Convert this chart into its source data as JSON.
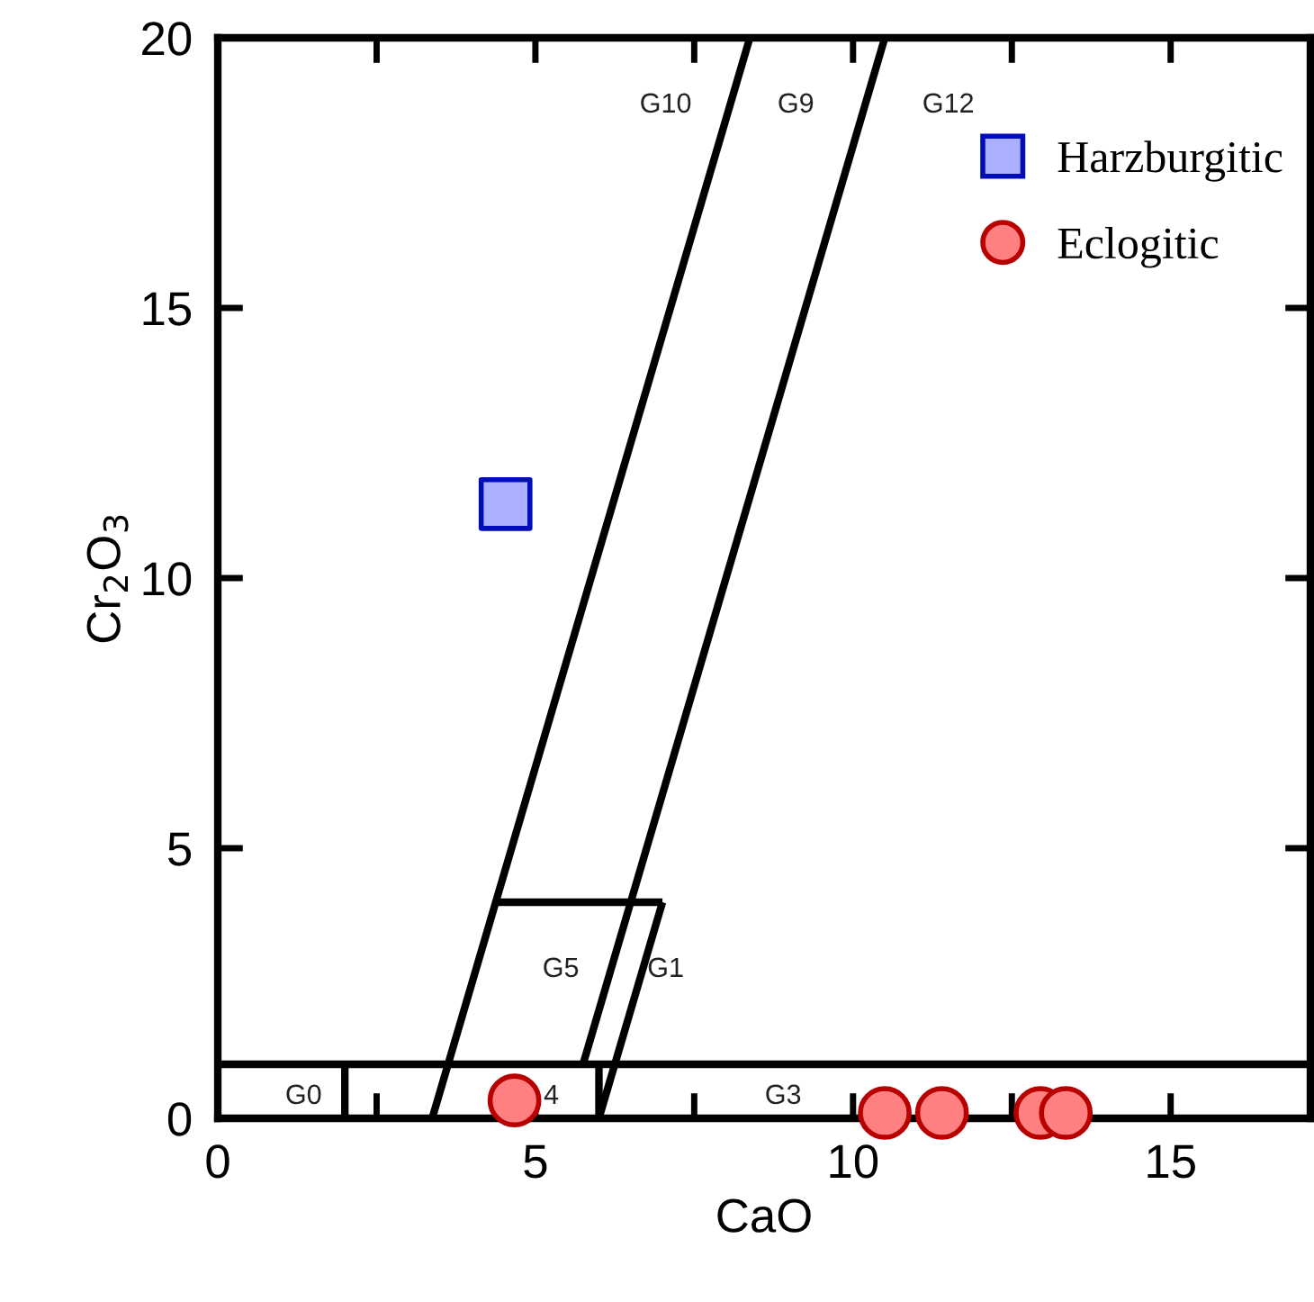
{
  "chart_data": {
    "type": "scatter",
    "xlabel": "CaO",
    "ylabel": "Cr$_{2}$O$_{3}$",
    "xlim": [
      0,
      17.2
    ],
    "ylim": [
      0,
      20
    ],
    "xticks": [
      0,
      {
        "value": 2.5,
        "label": null
      },
      5,
      {
        "value": 7.5,
        "label": null
      },
      10,
      {
        "value": 12.5,
        "label": null
      },
      15
    ],
    "yticks": [
      0,
      5,
      10,
      15,
      20
    ],
    "grid": false,
    "legend": "top right",
    "series": [
      {
        "type": "line",
        "color": "#000000",
        "x": [
          0,
          17.2
        ],
        "values": [
          1,
          1
        ]
      },
      {
        "type": "line",
        "color": "#000000",
        "x": [
          2,
          2
        ],
        "values": [
          0,
          1
        ]
      },
      {
        "type": "line",
        "color": "#000000",
        "x": [
          3.375,
          8.375
        ],
        "values": [
          0,
          20
        ]
      },
      {
        "type": "line",
        "color": "#000000",
        "x": [
          5.75,
          10.5
        ],
        "values": [
          1,
          20
        ]
      },
      {
        "type": "line",
        "color": "#000000",
        "x": [
          6,
          6
        ],
        "values": [
          0,
          1
        ]
      },
      {
        "type": "line",
        "color": "#000000",
        "x": [
          6,
          7
        ],
        "values": [
          0,
          4
        ]
      },
      {
        "type": "line",
        "color": "#000000",
        "x": [
          4.375,
          7
        ],
        "values": [
          4,
          4
        ]
      },
      {
        "name": "Harzburgitic",
        "marker": "square",
        "color": "#aab0ff",
        "x": [
          4.53
        ],
        "values": [
          11.37
        ]
      },
      {
        "name": "Eclogitic",
        "marker": "circle",
        "color": "#ff8080",
        "x": [
          4.67,
          10.5,
          11.4,
          12.95,
          13.35
        ],
        "values": [
          0.33,
          0.1,
          0.1,
          0.1,
          0.1
        ]
      }
    ],
    "annotations": [
      "G10",
      "G9",
      "G12",
      "G5",
      "G1",
      "G0",
      "4",
      "G3"
    ]
  }
}
